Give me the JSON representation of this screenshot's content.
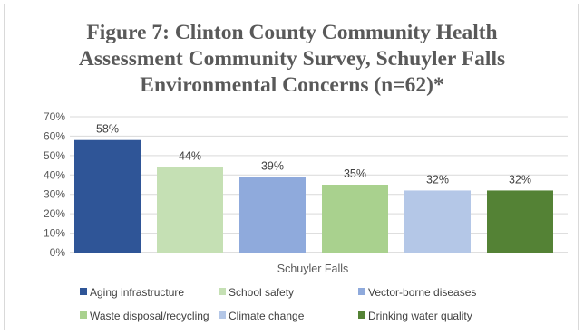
{
  "chart_data": {
    "type": "bar",
    "title_lines": [
      "Figure 7: Clinton County Community Health",
      "Assessment Community Survey, Schuyler Falls",
      "Environmental Concerns (n=62)*"
    ],
    "categories": [
      "Schuyler Falls"
    ],
    "xlabel": "Schuyler Falls",
    "ylim": [
      0,
      70
    ],
    "yticks": [
      "0%",
      "10%",
      "20%",
      "30%",
      "40%",
      "50%",
      "60%",
      "70%"
    ],
    "grid": true,
    "legend_position": "bottom",
    "series": [
      {
        "name": "Aging infrastructure",
        "values": [
          58
        ],
        "label": "58%",
        "color": "#2f5597"
      },
      {
        "name": "School safety",
        "values": [
          44
        ],
        "label": "44%",
        "color": "#c5e0b4"
      },
      {
        "name": "Vector-borne diseases",
        "values": [
          39
        ],
        "label": "39%",
        "color": "#8faadc"
      },
      {
        "name": "Waste disposal/recycling",
        "values": [
          35
        ],
        "label": "35%",
        "color": "#a9d18e"
      },
      {
        "name": "Climate change",
        "values": [
          32
        ],
        "label": "32%",
        "color": "#b4c7e7"
      },
      {
        "name": "Drinking water quality",
        "values": [
          32
        ],
        "label": "32%",
        "color": "#548235"
      }
    ]
  }
}
